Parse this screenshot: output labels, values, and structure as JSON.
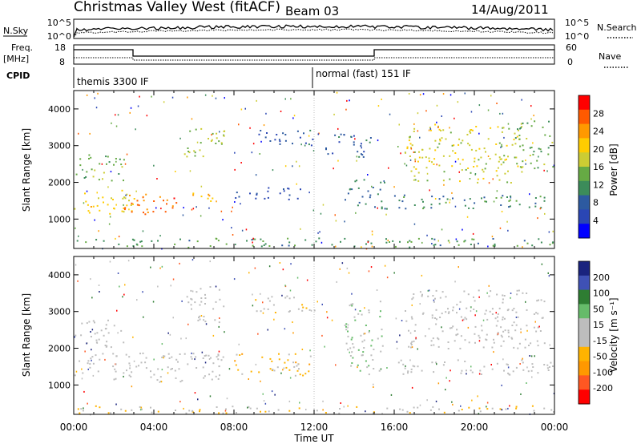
{
  "header": {
    "station": "Christmas Valley West (fitACF)",
    "beam": "Beam 03",
    "date": "14/Aug/2011"
  },
  "panels": {
    "noise": {
      "left_label": "N.Sky",
      "left_ticks": [
        "10^5",
        "10^0"
      ],
      "right_ticks": [
        "10^5",
        "10^0"
      ],
      "right_label": "N.Search"
    },
    "freq": {
      "left_label_1": "Freq.",
      "left_label_2": "[MHz]",
      "left_ticks": [
        "18",
        "8"
      ],
      "right_ticks": [
        "60",
        "0"
      ],
      "right_label": "Nave"
    },
    "cpid": {
      "label": "CPID",
      "segments": [
        "themis 3300 IF",
        "normal (fast) 151 IF"
      ]
    }
  },
  "chart_data": [
    {
      "type": "heatmap",
      "quantity": "power",
      "ylabel": "Slant Range [km]",
      "ylim": [
        200,
        4500
      ],
      "yticks": [
        1000,
        2000,
        3000,
        4000
      ],
      "xlabel": "Time UT",
      "xlim_hours": [
        0,
        24
      ],
      "colorbar": {
        "label": "Power [dB]",
        "ticks": [
          "28",
          "24",
          "20",
          "16",
          "12",
          "8",
          "4"
        ],
        "colors": [
          "#ff0000",
          "#ff5a00",
          "#ff9900",
          "#ffcc00",
          "#cccc33",
          "#66aa44",
          "#3c8c5a",
          "#2d5aa0",
          "#2a46b4",
          "#0000ff"
        ]
      },
      "bands": [
        {
          "t": [
            0.0,
            3.0
          ],
          "r": [
            1100,
            1800
          ],
          "value": 20
        },
        {
          "t": [
            2.5,
            5.5
          ],
          "r": [
            1150,
            1700
          ],
          "value": 26
        },
        {
          "t": [
            5.5,
            7.2
          ],
          "r": [
            1500,
            1800
          ],
          "value": 22
        },
        {
          "t": [
            0.0,
            2.5
          ],
          "r": [
            2050,
            2800
          ],
          "value": 14
        },
        {
          "t": [
            5.5,
            7.5
          ],
          "r": [
            2700,
            3600
          ],
          "value": 16
        },
        {
          "t": [
            8.0,
            11.5
          ],
          "r": [
            1550,
            1900
          ],
          "value": 6
        },
        {
          "t": [
            9.2,
            12.0
          ],
          "r": [
            2950,
            3450
          ],
          "value": 7
        },
        {
          "t": [
            12.5,
            14.8
          ],
          "r": [
            2700,
            3400
          ],
          "value": 8
        },
        {
          "t": [
            13.5,
            15.5
          ],
          "r": [
            1300,
            2100
          ],
          "value": 9
        },
        {
          "t": [
            15.5,
            24.0
          ],
          "r": [
            1300,
            1700
          ],
          "value": 11
        },
        {
          "t": [
            16.5,
            22.5
          ],
          "r": [
            2000,
            3600
          ],
          "value": 18
        },
        {
          "t": [
            22.0,
            24.0
          ],
          "r": [
            2400,
            3700
          ],
          "value": 14
        },
        {
          "t": [
            0.0,
            24.0
          ],
          "r": [
            200,
            500
          ],
          "value": 12
        }
      ]
    },
    {
      "type": "heatmap",
      "quantity": "velocity",
      "ylabel": "Slant Range [km]",
      "ylim": [
        200,
        4500
      ],
      "yticks": [
        1000,
        2000,
        3000,
        4000
      ],
      "xlabel": "Time UT",
      "xlim_hours": [
        0,
        24
      ],
      "xticks": [
        "00:00",
        "04:00",
        "08:00",
        "12:00",
        "16:00",
        "20:00",
        "00:00"
      ],
      "colorbar": {
        "label": "Velocity [m s⁻¹]",
        "ticks": [
          "200",
          "100",
          "50",
          "15",
          "-15",
          "-50",
          "-100",
          "-200"
        ],
        "colors": [
          "#1a237e",
          "#3f51b5",
          "#2e7d32",
          "#66bb6a",
          "#bdbdbd",
          "#bdbdbd",
          "#ffb300",
          "#ff9800",
          "#ff5722",
          "#ff0000"
        ]
      },
      "bands": [
        {
          "t": [
            0.0,
            7.5
          ],
          "r": [
            1100,
            1900
          ],
          "value": 0
        },
        {
          "t": [
            0.0,
            2.5
          ],
          "r": [
            2050,
            2800
          ],
          "value": 0
        },
        {
          "t": [
            5.5,
            7.5
          ],
          "r": [
            2700,
            3700
          ],
          "value": 0
        },
        {
          "t": [
            8.0,
            12.0
          ],
          "r": [
            1250,
            1900
          ],
          "value": -60
        },
        {
          "t": [
            9.0,
            12.0
          ],
          "r": [
            2950,
            3450
          ],
          "value": -20
        },
        {
          "t": [
            13.5,
            15.5
          ],
          "r": [
            1300,
            3300
          ],
          "value": 30
        },
        {
          "t": [
            15.5,
            24.0
          ],
          "r": [
            1300,
            1700
          ],
          "value": 0
        },
        {
          "t": [
            16.5,
            23.5
          ],
          "r": [
            2000,
            3600
          ],
          "value": 5
        },
        {
          "t": [
            0.0,
            24.0
          ],
          "r": [
            200,
            450
          ],
          "value": -40
        }
      ]
    }
  ]
}
